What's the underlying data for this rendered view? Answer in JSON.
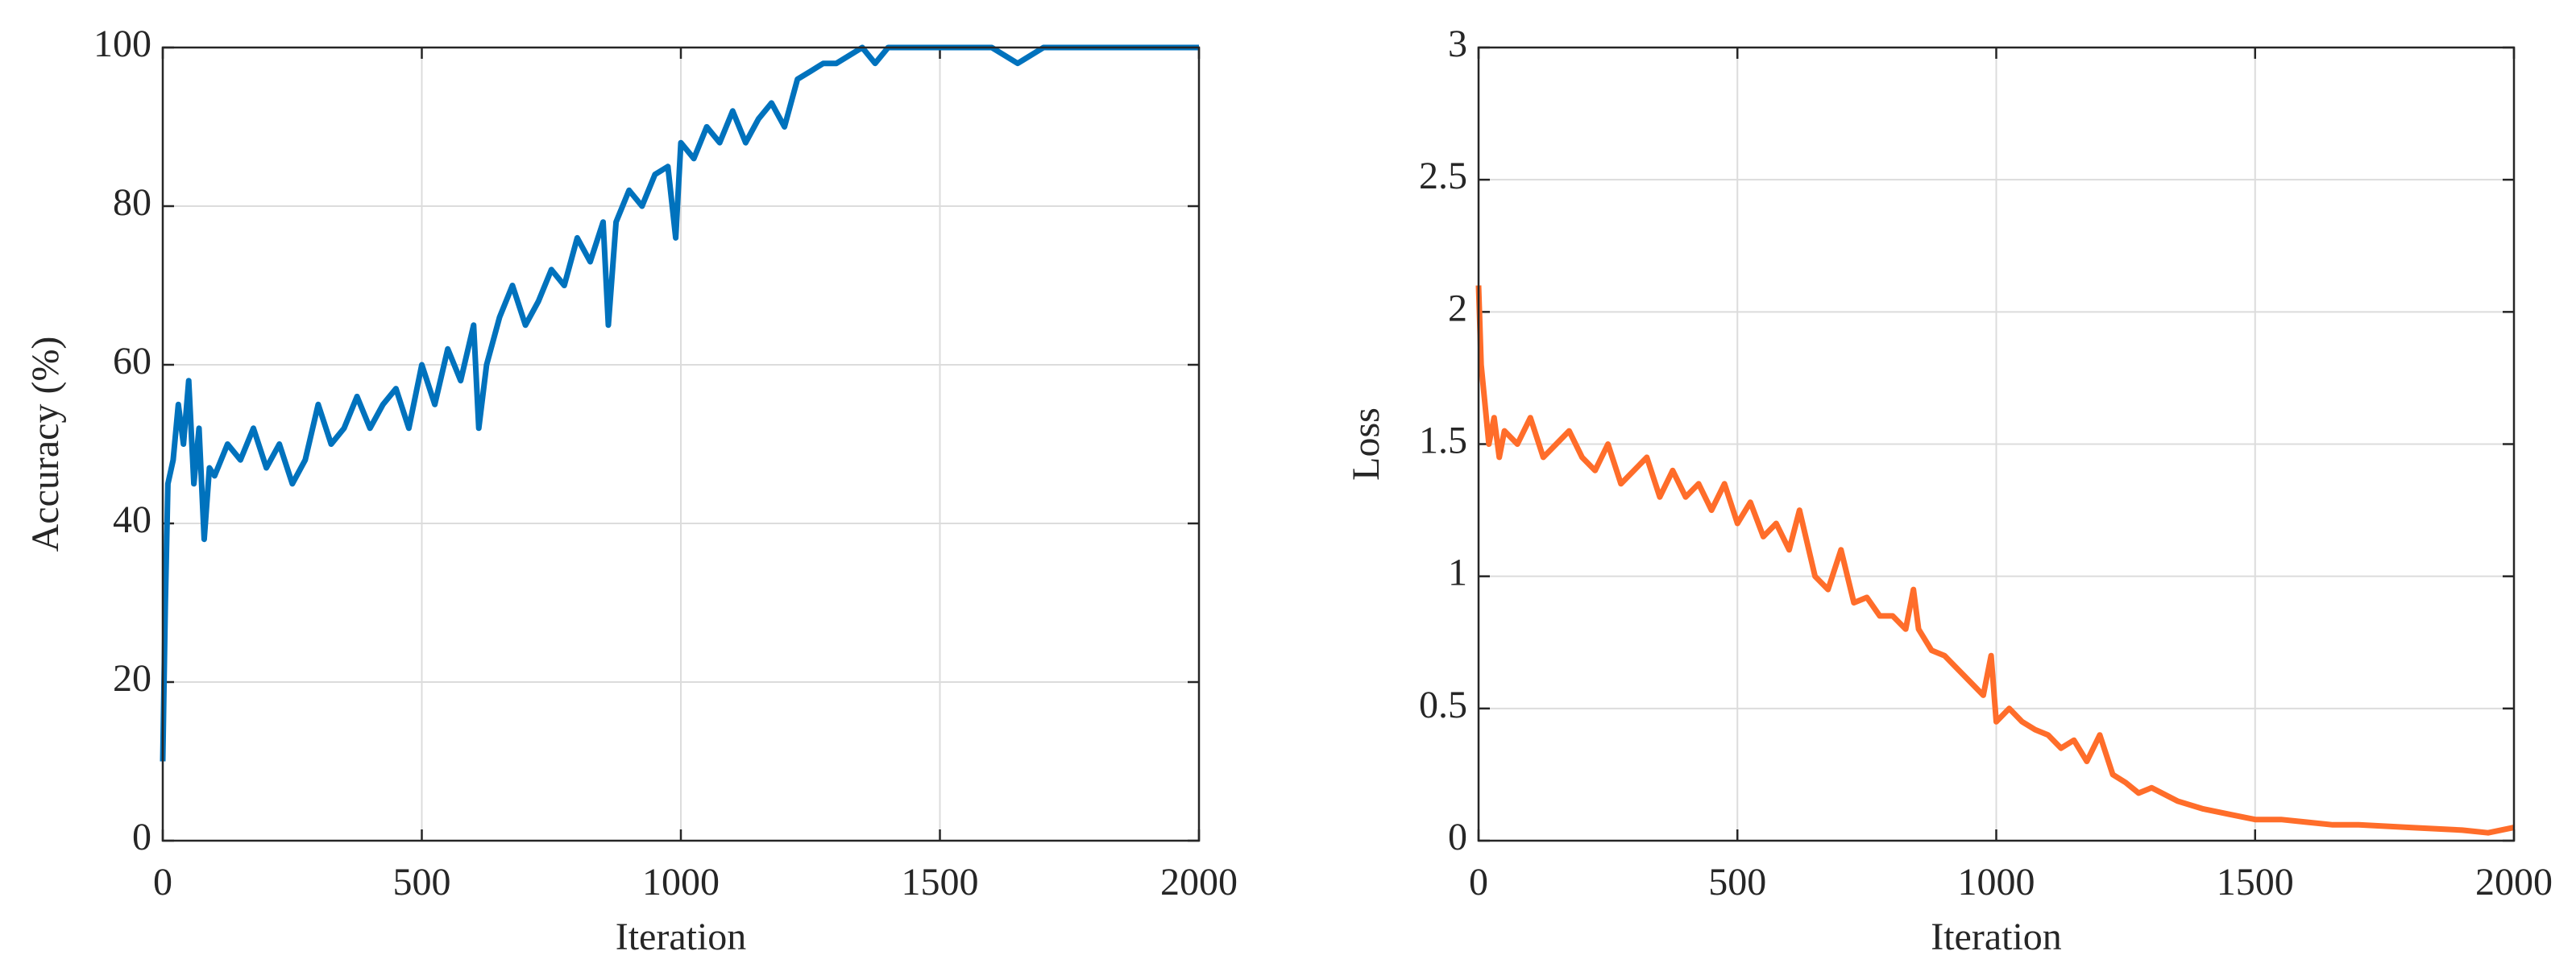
{
  "chart_data": [
    {
      "type": "line",
      "xlabel": "Iteration",
      "ylabel": "Accuracy (%)",
      "x": [
        0,
        5,
        10,
        20,
        30,
        40,
        50,
        60,
        70,
        80,
        90,
        100,
        125,
        150,
        175,
        200,
        225,
        250,
        275,
        300,
        325,
        350,
        375,
        400,
        425,
        450,
        475,
        500,
        525,
        550,
        575,
        600,
        610,
        625,
        650,
        675,
        700,
        725,
        750,
        775,
        800,
        825,
        850,
        860,
        875,
        900,
        925,
        950,
        975,
        990,
        1000,
        1025,
        1050,
        1075,
        1100,
        1125,
        1150,
        1175,
        1200,
        1225,
        1250,
        1275,
        1300,
        1325,
        1350,
        1375,
        1400,
        1450,
        1500,
        1550,
        1600,
        1650,
        1700,
        1800,
        1900,
        2000
      ],
      "values": [
        10,
        30,
        45,
        48,
        55,
        50,
        58,
        45,
        52,
        38,
        47,
        46,
        50,
        48,
        52,
        47,
        50,
        45,
        48,
        55,
        50,
        52,
        56,
        52,
        55,
        57,
        52,
        60,
        55,
        62,
        58,
        65,
        52,
        60,
        66,
        70,
        65,
        68,
        72,
        70,
        76,
        73,
        78,
        65,
        78,
        82,
        80,
        84,
        85,
        76,
        88,
        86,
        90,
        88,
        92,
        88,
        91,
        93,
        90,
        96,
        97,
        98,
        98,
        99,
        100,
        98,
        100,
        100,
        100,
        100,
        100,
        98,
        100,
        100,
        100,
        100
      ],
      "color": "#0072bd",
      "xlim": [
        0,
        2000
      ],
      "ylim": [
        0,
        100
      ],
      "xticks": [
        0,
        500,
        1000,
        1500,
        2000
      ],
      "yticks": [
        0,
        20,
        40,
        60,
        80,
        100
      ],
      "grid": true
    },
    {
      "type": "line",
      "xlabel": "Iteration",
      "ylabel": "Loss",
      "x": [
        0,
        5,
        10,
        20,
        30,
        40,
        50,
        75,
        100,
        125,
        150,
        175,
        200,
        225,
        250,
        275,
        300,
        325,
        350,
        375,
        400,
        425,
        450,
        475,
        500,
        525,
        550,
        575,
        600,
        620,
        650,
        675,
        700,
        725,
        750,
        775,
        800,
        825,
        840,
        850,
        875,
        900,
        925,
        950,
        975,
        990,
        1000,
        1025,
        1050,
        1075,
        1100,
        1125,
        1150,
        1175,
        1200,
        1225,
        1250,
        1275,
        1300,
        1350,
        1400,
        1450,
        1500,
        1550,
        1600,
        1650,
        1700,
        1800,
        1900,
        1950,
        2000
      ],
      "values": [
        2.1,
        1.8,
        1.7,
        1.5,
        1.6,
        1.45,
        1.55,
        1.5,
        1.6,
        1.45,
        1.5,
        1.55,
        1.45,
        1.4,
        1.5,
        1.35,
        1.4,
        1.45,
        1.3,
        1.4,
        1.3,
        1.35,
        1.25,
        1.35,
        1.2,
        1.28,
        1.15,
        1.2,
        1.1,
        1.25,
        1.0,
        0.95,
        1.1,
        0.9,
        0.92,
        0.85,
        0.85,
        0.8,
        0.95,
        0.8,
        0.72,
        0.7,
        0.65,
        0.6,
        0.55,
        0.7,
        0.45,
        0.5,
        0.45,
        0.42,
        0.4,
        0.35,
        0.38,
        0.3,
        0.4,
        0.25,
        0.22,
        0.18,
        0.2,
        0.15,
        0.12,
        0.1,
        0.08,
        0.08,
        0.07,
        0.06,
        0.06,
        0.05,
        0.04,
        0.03,
        0.05
      ],
      "color": "#ff6d2a",
      "xlim": [
        0,
        2000
      ],
      "ylim": [
        0,
        3
      ],
      "xticks": [
        0,
        500,
        1000,
        1500,
        2000
      ],
      "yticks": [
        0,
        0.5,
        1,
        1.5,
        2,
        2.5,
        3
      ],
      "grid": true
    }
  ]
}
